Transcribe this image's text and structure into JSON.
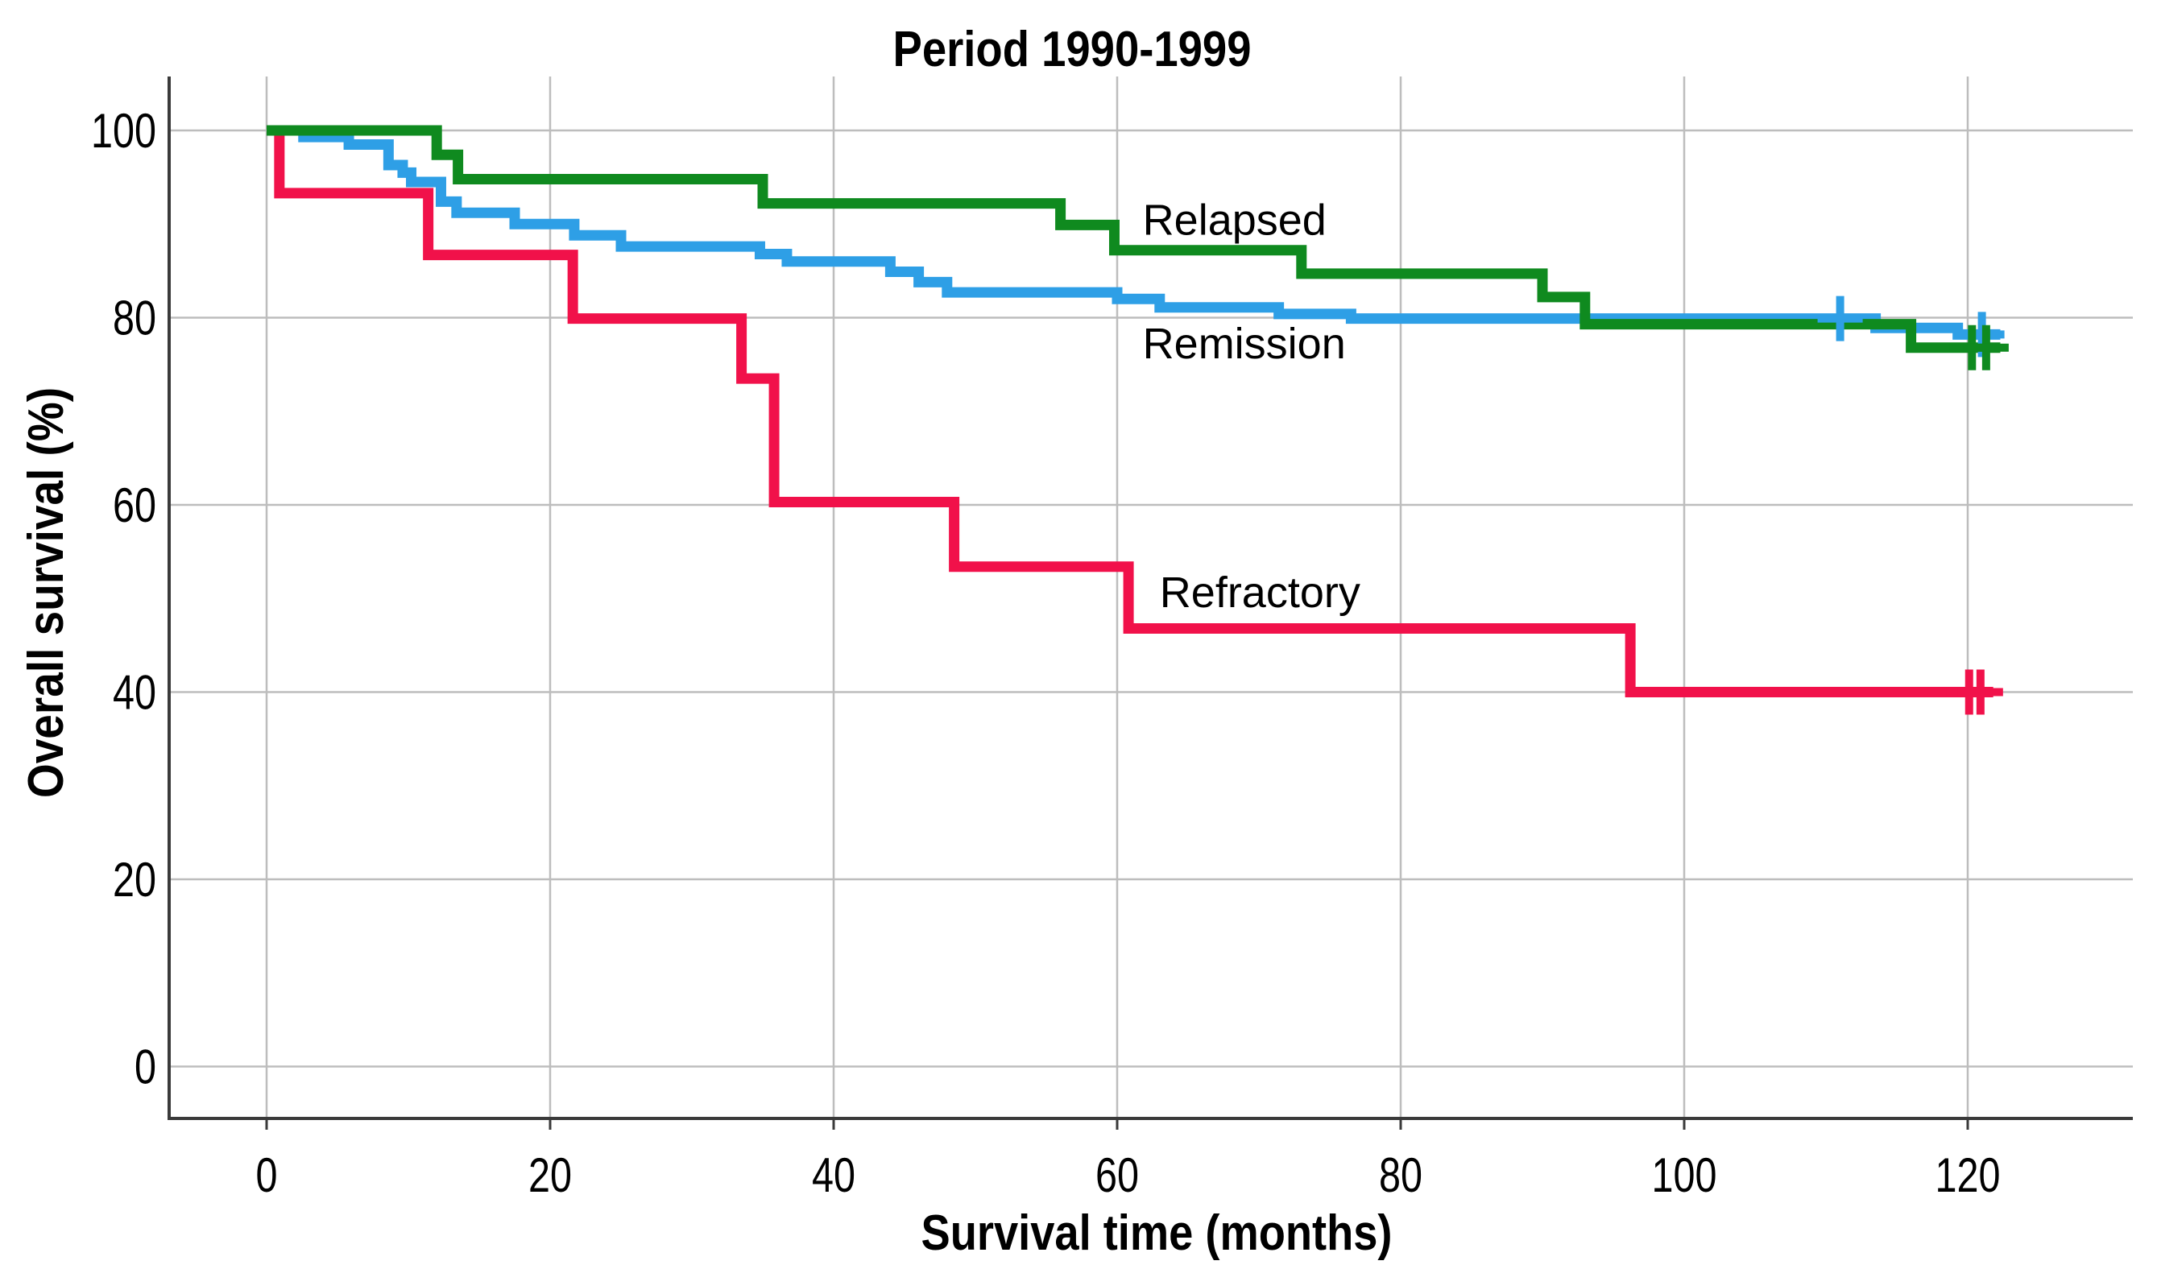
{
  "figure": {
    "title": "Period 1990-1999",
    "xlabel": "Survival time (months)",
    "ylabel": "Overall survival (%)"
  },
  "chart_data": {
    "type": "line",
    "subtype": "kaplan-meier-step-survival",
    "title": "Period 1990-1999",
    "xlabel": "Survival time (months)",
    "ylabel": "Overall survival (%)",
    "x_ticks": [
      0,
      20,
      40,
      60,
      80,
      100,
      120
    ],
    "y_ticks": [
      0,
      20,
      40,
      60,
      80,
      100
    ],
    "xlim": [
      -7,
      132
    ],
    "ylim": [
      -5.6,
      105.8
    ],
    "grid": true,
    "legend_position": "inline-labels-on-plot",
    "series": [
      {
        "name": "Remission",
        "color": "#2E9FE6",
        "label": {
          "text": "Remission",
          "x": 61.8,
          "y": 77.3
        },
        "steps": [
          [
            0,
            100
          ],
          [
            2.6,
            99.3
          ],
          [
            5.8,
            98.5
          ],
          [
            8.6,
            96.3
          ],
          [
            9.6,
            95.5
          ],
          [
            10.2,
            94.5
          ],
          [
            12.3,
            92.4
          ],
          [
            13.4,
            91.2
          ],
          [
            17.5,
            90.0
          ],
          [
            21.7,
            88.8
          ],
          [
            25.0,
            87.6
          ],
          [
            34.8,
            86.8
          ],
          [
            36.7,
            86.0
          ],
          [
            44.0,
            84.9
          ],
          [
            46.0,
            83.8
          ],
          [
            48.0,
            82.7
          ],
          [
            60.0,
            82.0
          ],
          [
            63.0,
            81.1
          ],
          [
            71.4,
            80.4
          ],
          [
            76.5,
            79.9
          ],
          [
            113.5,
            78.9
          ],
          [
            119.3,
            78.2
          ]
        ],
        "end_x": 122.3,
        "censor_x": [
          111.0,
          121.0
        ]
      },
      {
        "name": "Refractory",
        "color": "#F1114A",
        "label": {
          "text": "Refractory",
          "x": 63.0,
          "y": 50.7
        },
        "steps": [
          [
            0,
            100
          ],
          [
            0.9,
            93.3
          ],
          [
            11.4,
            86.7
          ],
          [
            21.6,
            79.9
          ],
          [
            33.5,
            73.5
          ],
          [
            35.8,
            60.3
          ],
          [
            48.5,
            53.4
          ],
          [
            60.8,
            46.8
          ],
          [
            96.2,
            40.0
          ]
        ],
        "end_x": 121.8,
        "censor_x": [
          120.1,
          120.9
        ]
      },
      {
        "name": "Relapsed",
        "color": "#0F8A1F",
        "label": {
          "text": "Relapsed",
          "x": 61.8,
          "y": 90.5
        },
        "steps": [
          [
            0,
            100
          ],
          [
            12.0,
            97.4
          ],
          [
            13.5,
            94.8
          ],
          [
            35.0,
            92.2
          ],
          [
            56.0,
            89.9
          ],
          [
            59.8,
            87.2
          ],
          [
            73.0,
            84.7
          ],
          [
            90.0,
            82.2
          ],
          [
            93.0,
            79.3
          ],
          [
            116.0,
            76.8
          ]
        ],
        "end_x": 122.3,
        "censor_x": [
          120.3,
          121.3
        ]
      }
    ]
  },
  "style_colors": {
    "gridline": "#BDBDBD",
    "axis": "#3A3A3A",
    "text": "#000000",
    "background": "#FFFFFF"
  }
}
